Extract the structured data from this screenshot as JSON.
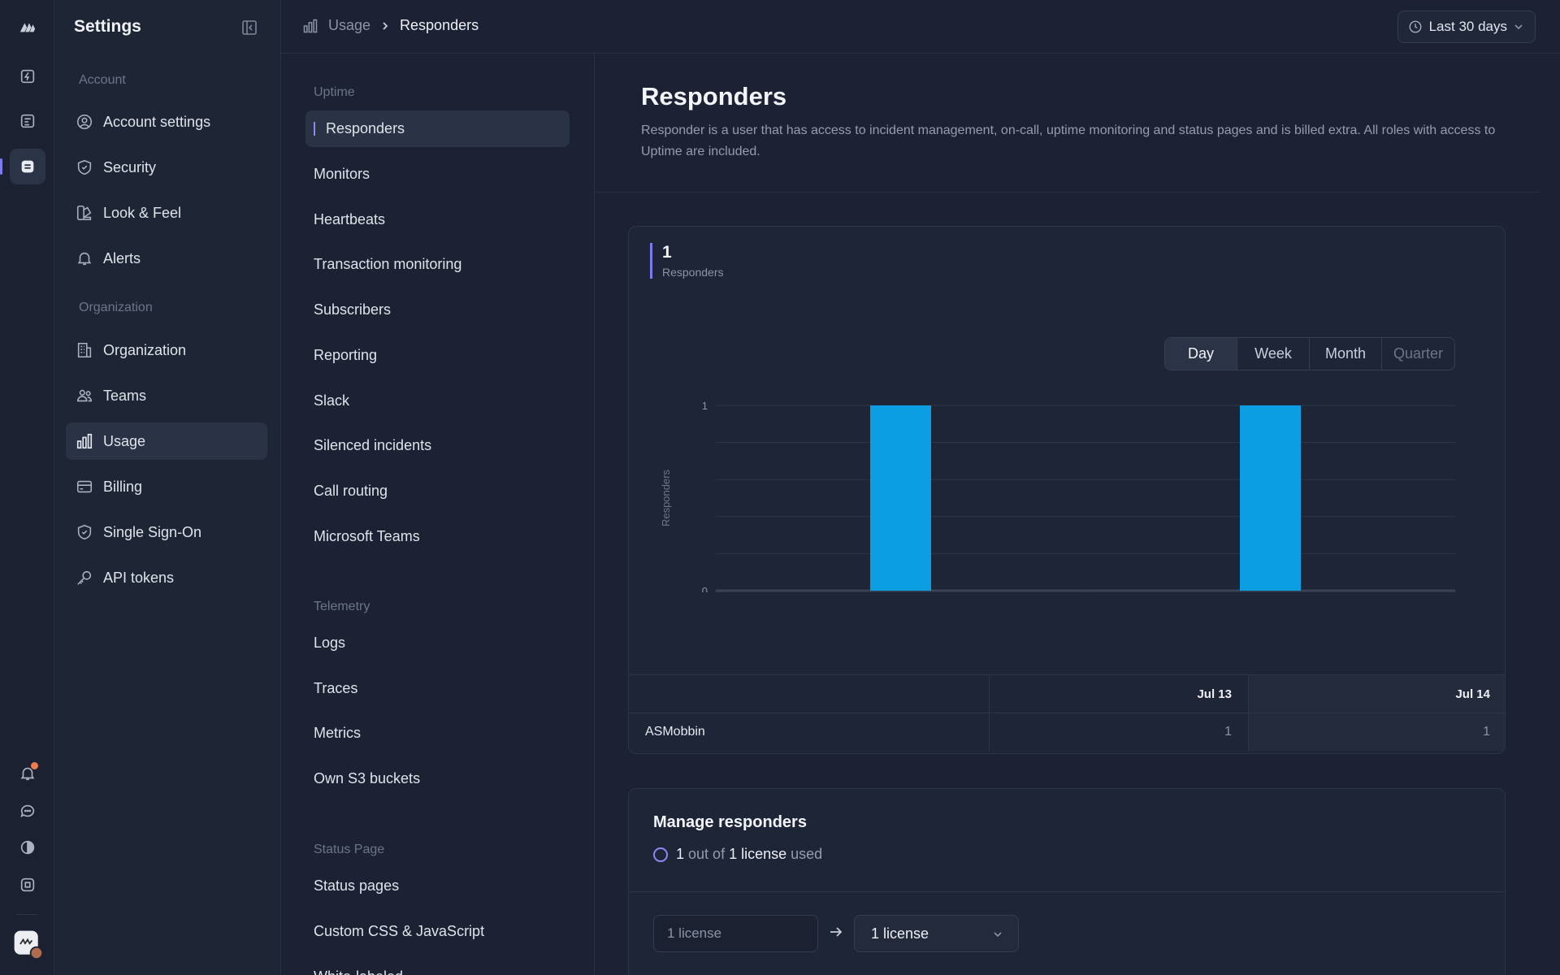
{
  "settings": {
    "title": "Settings"
  },
  "sidebar": {
    "account_label": "Account",
    "account_items": [
      {
        "label": "Account settings",
        "icon": "user-circle-icon"
      },
      {
        "label": "Security",
        "icon": "shield-icon"
      },
      {
        "label": "Look & Feel",
        "icon": "palette-icon"
      },
      {
        "label": "Alerts",
        "icon": "bell-icon"
      }
    ],
    "org_label": "Organization",
    "org_items": [
      {
        "label": "Organization",
        "icon": "building-icon"
      },
      {
        "label": "Teams",
        "icon": "users-icon"
      },
      {
        "label": "Usage",
        "icon": "bar-chart-icon",
        "active": true
      },
      {
        "label": "Billing",
        "icon": "credit-card-icon"
      },
      {
        "label": "Single Sign-On",
        "icon": "shield-check-icon"
      },
      {
        "label": "API tokens",
        "icon": "key-icon"
      }
    ]
  },
  "breadcrumb": {
    "parent": "Usage",
    "current": "Responders"
  },
  "date_range": {
    "label": "Last 30 days"
  },
  "subnav": {
    "uptime_label": "Uptime",
    "uptime_items": [
      "Responders",
      "Monitors",
      "Heartbeats",
      "Transaction monitoring",
      "Subscribers",
      "Reporting",
      "Slack",
      "Silenced incidents",
      "Call routing",
      "Microsoft Teams"
    ],
    "telemetry_label": "Telemetry",
    "telemetry_items": [
      "Logs",
      "Traces",
      "Metrics",
      "Own S3 buckets"
    ],
    "status_label": "Status Page",
    "status_items": [
      "Status pages",
      "Custom CSS & JavaScript",
      "White-labeled"
    ]
  },
  "page": {
    "title": "Responders",
    "description": "Responder is a user that has access to incident management, on-call, uptime monitoring and status pages and is billed extra. All roles with access to Uptime are included."
  },
  "metric": {
    "value": "1",
    "label": "Responders"
  },
  "granularity": {
    "options": [
      "Day",
      "Week",
      "Month",
      "Quarter"
    ],
    "selected": "Day"
  },
  "chart_data": {
    "type": "bar",
    "categories": [
      "Jul 13",
      "Jul 14"
    ],
    "values": [
      1,
      1
    ],
    "ylabel": "Responders",
    "ylim": [
      0,
      1
    ],
    "yticks": [
      "0",
      "1"
    ],
    "color": "#0c9ee3"
  },
  "table": {
    "headers": [
      "",
      "Jul 13",
      "Jul 14"
    ],
    "rows": [
      {
        "name": "ASMobbin",
        "values": [
          "1",
          "1"
        ]
      }
    ]
  },
  "manage": {
    "title": "Manage responders",
    "used": "1",
    "out_of": "out of",
    "total": "1 license",
    "used_word": "used",
    "current": "1 license",
    "selected": "1 license"
  },
  "colors": {
    "accent": "#7c7cf0",
    "bar": "#0c9ee3",
    "notification": "#f07a52"
  }
}
